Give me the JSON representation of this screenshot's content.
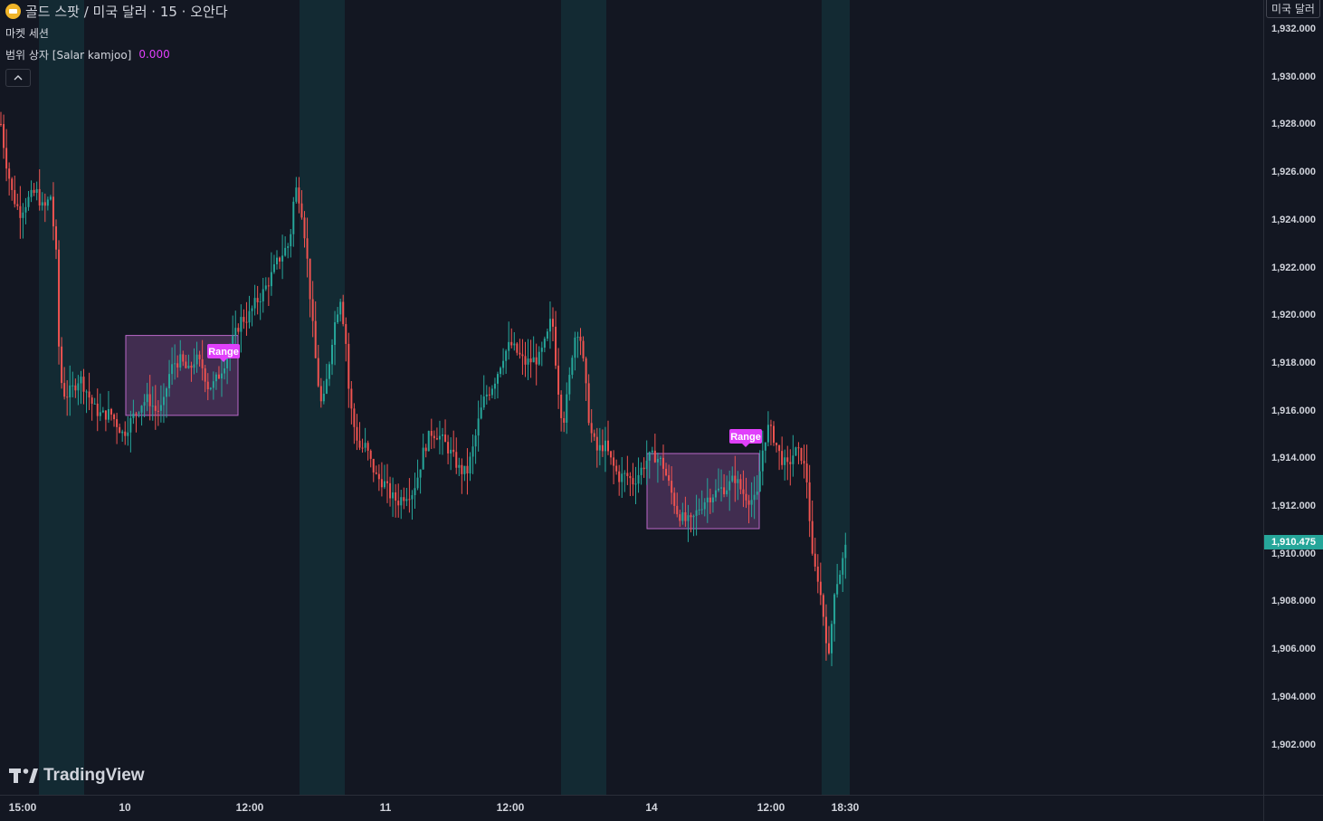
{
  "header": {
    "symbol_title": "골드 스팟 / 미국 달러 · 15 · 오안다",
    "symbol_icon": "gold-coin-icon",
    "indicator_1": "마켓 세션",
    "indicator_2": "범위 상자 [Salar kamjoo]",
    "indicator_2_value": "0.000",
    "collapse_icon": "chevron-up-icon"
  },
  "price_axis": {
    "currency_label": "미국 달러",
    "ticks": [
      "1,932.000",
      "1,930.000",
      "1,928.000",
      "1,926.000",
      "1,924.000",
      "1,922.000",
      "1,920.000",
      "1,918.000",
      "1,916.000",
      "1,914.000",
      "1,912.000",
      "1,910.000",
      "1,908.000",
      "1,906.000",
      "1,904.000",
      "1,902.000"
    ],
    "last_price_label": "1,910.475"
  },
  "time_axis": {
    "labels": [
      "15:00",
      "10",
      "12:00",
      "11",
      "12:00",
      "14",
      "12:00",
      "18:30"
    ]
  },
  "watermark": "TradingView",
  "colors": {
    "background": "#131722",
    "up": "#26a69a",
    "down": "#ef5350",
    "session": "#132a33",
    "range_fill": "rgba(186,104,200,0.28)",
    "range_border": "#ba68c8",
    "range_label": "#e040fb"
  },
  "chart_data": {
    "type": "candlestick",
    "instrument": "골드 스팟 / 미국 달러",
    "interval": "15",
    "ylim": [
      1901.2,
      1932.6
    ],
    "x_labels": [
      "15:00",
      "10",
      "12:00",
      "11",
      "12:00",
      "14",
      "12:00",
      "18:30"
    ],
    "last_price": 1910.475,
    "close_path": [
      [
        0,
        1928.3
      ],
      [
        6,
        1926.6
      ],
      [
        14,
        1925.0
      ],
      [
        22,
        1924.3
      ],
      [
        30,
        1924.8
      ],
      [
        40,
        1925.2
      ],
      [
        48,
        1924.4
      ],
      [
        56,
        1925.0
      ],
      [
        62,
        1922.5
      ],
      [
        66,
        1917.5
      ],
      [
        72,
        1916.6
      ],
      [
        80,
        1916.9
      ],
      [
        88,
        1917.4
      ],
      [
        96,
        1916.8
      ],
      [
        104,
        1916.1
      ],
      [
        112,
        1915.8
      ],
      [
        122,
        1915.9
      ],
      [
        130,
        1915.4
      ],
      [
        136,
        1915.0
      ],
      [
        142,
        1915.4
      ],
      [
        148,
        1915.8
      ],
      [
        156,
        1916.3
      ],
      [
        164,
        1916.5
      ],
      [
        172,
        1916.0
      ],
      [
        180,
        1916.1
      ],
      [
        186,
        1917.4
      ],
      [
        192,
        1918.0
      ],
      [
        200,
        1918.1
      ],
      [
        208,
        1917.6
      ],
      [
        216,
        1918.2
      ],
      [
        224,
        1917.8
      ],
      [
        230,
        1917.0
      ],
      [
        236,
        1917.1
      ],
      [
        242,
        1917.5
      ],
      [
        250,
        1918.2
      ],
      [
        258,
        1919.0
      ],
      [
        266,
        1919.8
      ],
      [
        274,
        1919.9
      ],
      [
        282,
        1920.5
      ],
      [
        290,
        1920.9
      ],
      [
        298,
        1921.5
      ],
      [
        306,
        1922.2
      ],
      [
        314,
        1922.7
      ],
      [
        320,
        1923.0
      ],
      [
        326,
        1925.4
      ],
      [
        332,
        1924.8
      ],
      [
        338,
        1923.0
      ],
      [
        344,
        1920.2
      ],
      [
        350,
        1917.6
      ],
      [
        356,
        1916.0
      ],
      [
        362,
        1917.5
      ],
      [
        368,
        1919.3
      ],
      [
        376,
        1920.8
      ],
      [
        382,
        1919.0
      ],
      [
        386,
        1916.5
      ],
      [
        392,
        1915.2
      ],
      [
        398,
        1914.4
      ],
      [
        404,
        1914.5
      ],
      [
        410,
        1913.8
      ],
      [
        416,
        1913.2
      ],
      [
        424,
        1913.0
      ],
      [
        432,
        1912.4
      ],
      [
        440,
        1912.2
      ],
      [
        448,
        1912.5
      ],
      [
        456,
        1912.6
      ],
      [
        462,
        1913.3
      ],
      [
        468,
        1914.3
      ],
      [
        476,
        1915.1
      ],
      [
        484,
        1915.0
      ],
      [
        492,
        1914.6
      ],
      [
        500,
        1914.1
      ],
      [
        508,
        1913.5
      ],
      [
        516,
        1913.4
      ],
      [
        524,
        1914.6
      ],
      [
        530,
        1915.8
      ],
      [
        536,
        1916.6
      ],
      [
        542,
        1916.9
      ],
      [
        548,
        1917.4
      ],
      [
        556,
        1918.3
      ],
      [
        564,
        1918.8
      ],
      [
        572,
        1918.4
      ],
      [
        580,
        1918.0
      ],
      [
        588,
        1918.1
      ],
      [
        596,
        1918.2
      ],
      [
        604,
        1919.0
      ],
      [
        610,
        1920.0
      ],
      [
        616,
        1917.2
      ],
      [
        622,
        1915.4
      ],
      [
        628,
        1916.9
      ],
      [
        634,
        1919.0
      ],
      [
        640,
        1919.5
      ],
      [
        646,
        1917.5
      ],
      [
        652,
        1915.2
      ],
      [
        660,
        1914.3
      ],
      [
        668,
        1914.6
      ],
      [
        676,
        1913.8
      ],
      [
        684,
        1913.2
      ],
      [
        692,
        1913.3
      ],
      [
        700,
        1913.0
      ],
      [
        708,
        1913.5
      ],
      [
        716,
        1914.0
      ],
      [
        724,
        1914.1
      ],
      [
        732,
        1913.8
      ],
      [
        740,
        1912.8
      ],
      [
        748,
        1911.8
      ],
      [
        756,
        1911.4
      ],
      [
        764,
        1911.3
      ],
      [
        772,
        1911.9
      ],
      [
        780,
        1912.3
      ],
      [
        788,
        1912.5
      ],
      [
        796,
        1912.7
      ],
      [
        804,
        1912.8
      ],
      [
        812,
        1913.2
      ],
      [
        820,
        1912.6
      ],
      [
        828,
        1912.3
      ],
      [
        836,
        1912.2
      ],
      [
        842,
        1914.2
      ],
      [
        848,
        1915.3
      ],
      [
        854,
        1915.0
      ],
      [
        862,
        1914.1
      ],
      [
        870,
        1913.6
      ],
      [
        878,
        1914.3
      ],
      [
        886,
        1914.1
      ],
      [
        892,
        1913.0
      ],
      [
        898,
        1909.6
      ],
      [
        904,
        1909.0
      ],
      [
        910,
        1907.4
      ],
      [
        916,
        1905.6
      ],
      [
        922,
        1908.5
      ],
      [
        928,
        1909.2
      ],
      [
        936,
        1910.475
      ]
    ],
    "range_boxes": [
      {
        "label": "Range",
        "high": 1919.15,
        "low": 1915.8
      },
      {
        "label": "Range",
        "high": 1914.2,
        "low": 1911.05
      }
    ],
    "market_sessions": 4
  }
}
